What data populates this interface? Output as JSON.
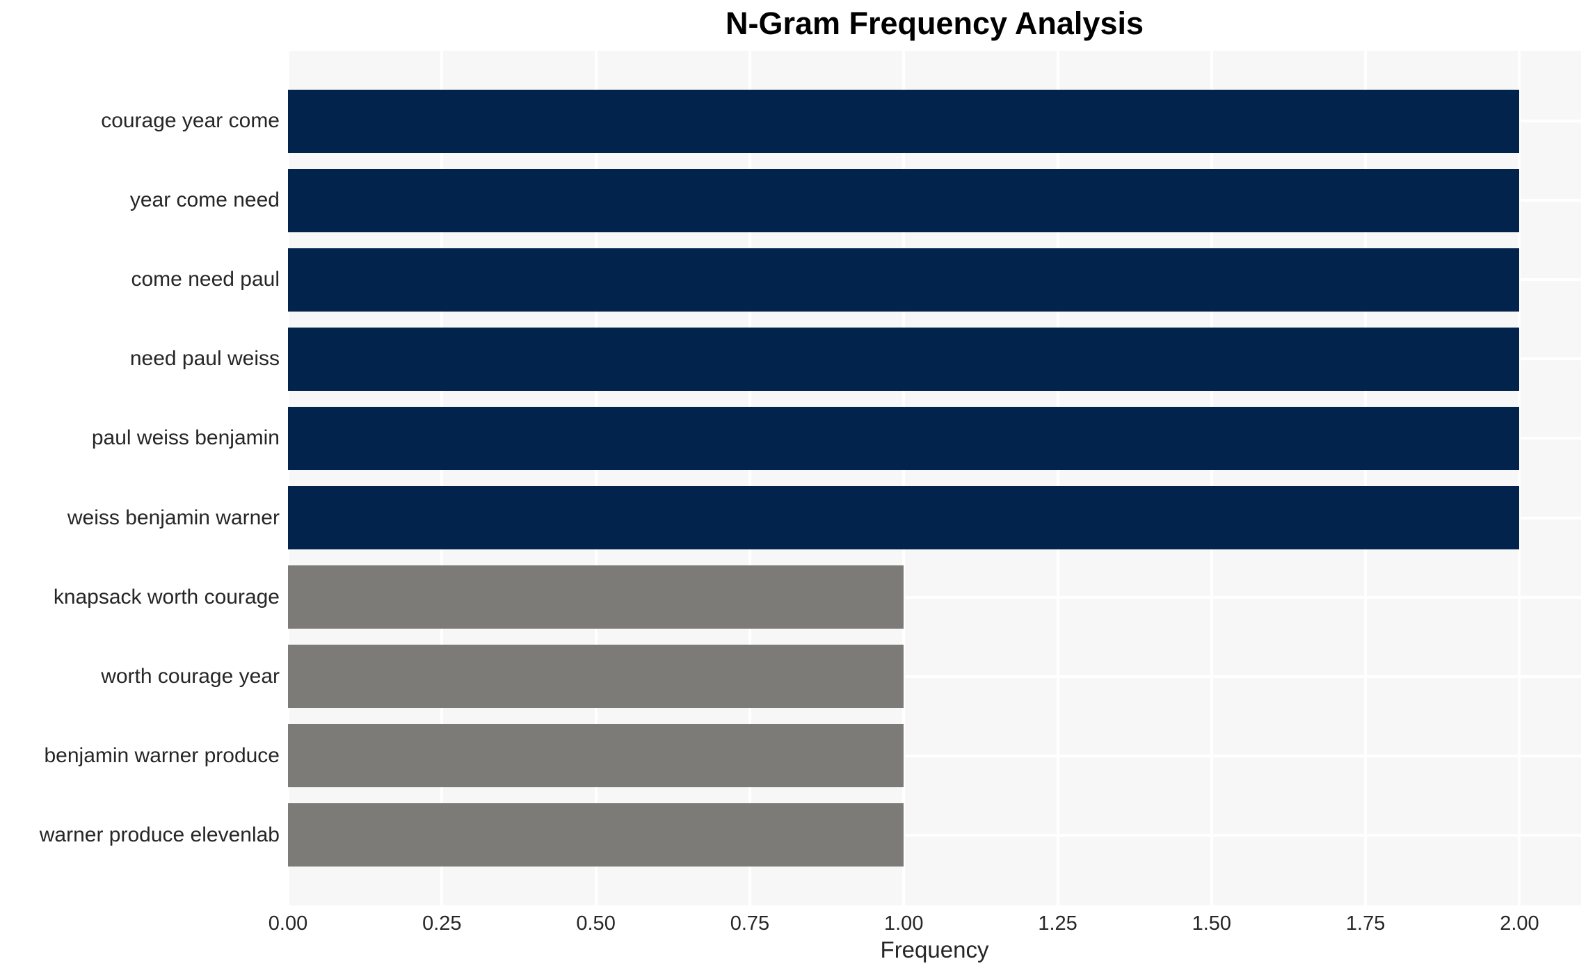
{
  "chart_data": {
    "type": "bar",
    "orientation": "horizontal",
    "title": "N-Gram Frequency Analysis",
    "xlabel": "Frequency",
    "ylabel": "",
    "categories": [
      "courage year come",
      "year come need",
      "come need paul",
      "need paul weiss",
      "paul weiss benjamin",
      "weiss benjamin warner",
      "knapsack worth courage",
      "worth courage year",
      "benjamin warner produce",
      "warner produce elevenlab"
    ],
    "values": [
      2,
      2,
      2,
      2,
      2,
      2,
      1,
      1,
      1,
      1
    ],
    "bar_colors": [
      "#02234c",
      "#02234c",
      "#02234c",
      "#02234c",
      "#02234c",
      "#02234c",
      "#7c7b78",
      "#7c7b78",
      "#7c7b78",
      "#7c7b78"
    ],
    "xlim": [
      0,
      2.1
    ],
    "xticks": [
      0,
      0.25,
      0.5,
      0.75,
      1,
      1.25,
      1.5,
      1.75,
      2
    ],
    "xtick_labels": [
      "0.00",
      "0.25",
      "0.50",
      "0.75",
      "1.00",
      "1.25",
      "1.50",
      "1.75",
      "2.00"
    ],
    "grid": true,
    "legend": false,
    "colors": {
      "bar_freq2": "#02234c",
      "bar_freq1": "#7c7b78",
      "plot_bg": "#f7f7f7",
      "grid": "#ffffff",
      "tick_text": "#262626",
      "title_text": "#000000"
    }
  }
}
